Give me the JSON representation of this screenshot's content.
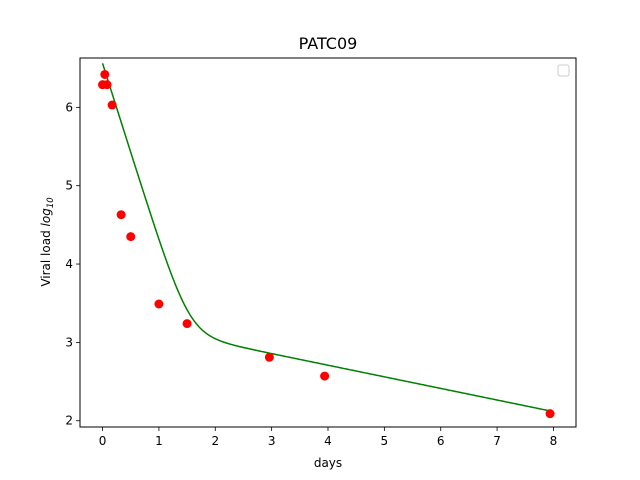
{
  "chart_data": {
    "type": "line",
    "title": "PATC09",
    "xlabel": "days",
    "ylabel_prefix": "Viral load ",
    "ylabel_log": "log",
    "ylabel_sub": "10",
    "xlim": [
      -0.4,
      8.4
    ],
    "ylim": [
      1.92,
      6.63
    ],
    "x_ticks": [
      0,
      1,
      2,
      3,
      4,
      5,
      6,
      7,
      8
    ],
    "y_ticks": [
      2,
      3,
      4,
      5,
      6
    ],
    "grid": false,
    "legend": "top-right (empty box)",
    "series": [
      {
        "kind": "markers",
        "color": "#ff0000",
        "points": [
          [
            0.0,
            6.29
          ],
          [
            0.04,
            6.42
          ],
          [
            0.08,
            6.29
          ],
          [
            0.17,
            6.03
          ],
          [
            0.33,
            4.63
          ],
          [
            0.5,
            4.35
          ],
          [
            1.0,
            3.49
          ],
          [
            1.5,
            3.24
          ],
          [
            2.96,
            2.81
          ],
          [
            3.94,
            2.57
          ],
          [
            7.94,
            2.09
          ]
        ]
      },
      {
        "kind": "fit-curve",
        "color": "#008000",
        "model": {
          "A": 3.65,
          "alpha": 5.24,
          "B": 2.0,
          "beta": 0.341,
          "x_start": 0.0,
          "x_end": 7.94
        }
      }
    ]
  }
}
